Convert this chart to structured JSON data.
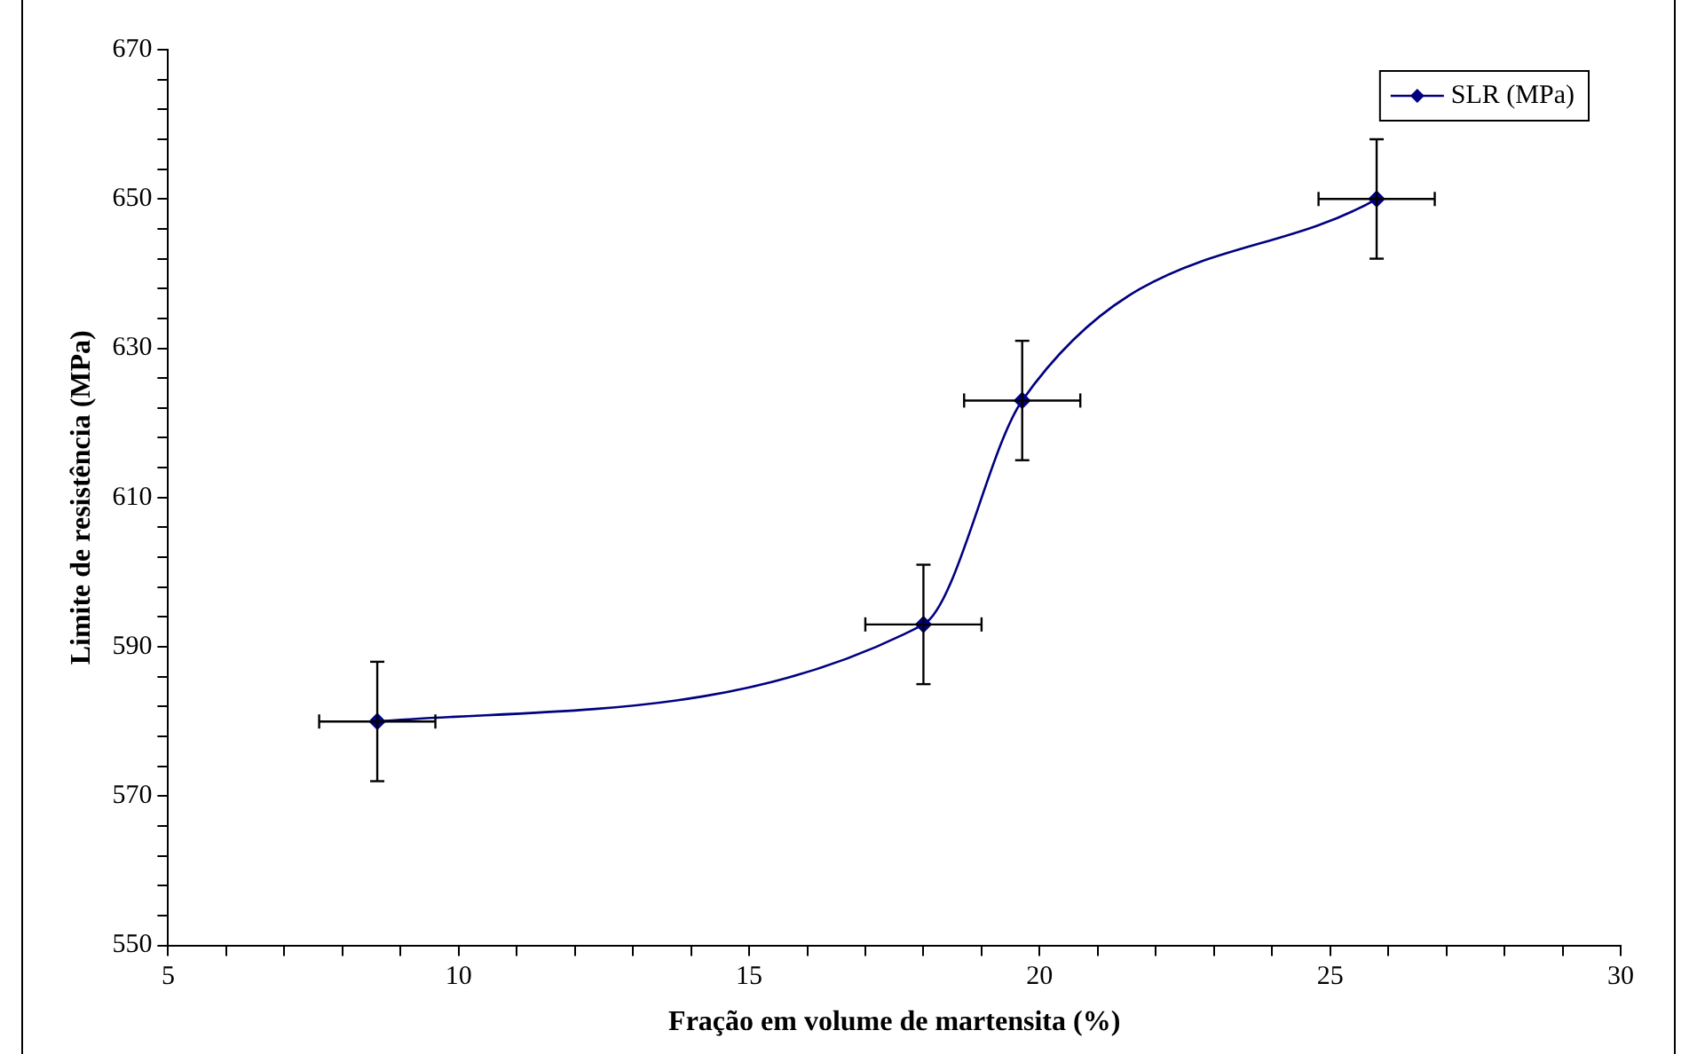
{
  "chart_data": {
    "type": "line",
    "xlabel": "Fração em volume de martensita (%)",
    "ylabel": "Limite de resistência (MPa)",
    "x": [
      8.6,
      18,
      19.7,
      25.8
    ],
    "series": [
      {
        "name": "SLR (MPa)",
        "color": "#000080",
        "values": [
          580,
          593,
          623,
          650
        ],
        "errors": [
          8,
          8,
          8,
          8
        ],
        "xerrors": [
          1,
          1,
          1,
          1
        ]
      }
    ],
    "xlim": [
      5,
      30
    ],
    "ylim": [
      550,
      670
    ],
    "xticks": [
      5,
      {
        "value": 6,
        "label": null
      },
      {
        "value": 7,
        "label": null
      },
      {
        "value": 8,
        "label": null
      },
      {
        "value": 9,
        "label": null
      },
      10,
      {
        "value": 11,
        "label": null
      },
      {
        "value": 12,
        "label": null
      },
      {
        "value": 13,
        "label": null
      },
      {
        "value": 14,
        "label": null
      },
      15,
      {
        "value": 16,
        "label": null
      },
      {
        "value": 17,
        "label": null
      },
      {
        "value": 18,
        "label": null
      },
      {
        "value": 19,
        "label": null
      },
      20,
      {
        "value": 21,
        "label": null
      },
      {
        "value": 22,
        "label": null
      },
      {
        "value": 23,
        "label": null
      },
      {
        "value": 24,
        "label": null
      },
      25,
      {
        "value": 26,
        "label": null
      },
      {
        "value": 27,
        "label": null
      },
      {
        "value": 28,
        "label": null
      },
      {
        "value": 29,
        "label": null
      },
      30
    ],
    "yticks": [
      550,
      {
        "value": 554,
        "label": null
      },
      {
        "value": 558,
        "label": null
      },
      {
        "value": 562,
        "label": null
      },
      {
        "value": 566,
        "label": null
      },
      570,
      {
        "value": 574,
        "label": null
      },
      {
        "value": 578,
        "label": null
      },
      {
        "value": 582,
        "label": null
      },
      {
        "value": 586,
        "label": null
      },
      590,
      {
        "value": 594,
        "label": null
      },
      {
        "value": 598,
        "label": null
      },
      {
        "value": 602,
        "label": null
      },
      {
        "value": 606,
        "label": null
      },
      610,
      {
        "value": 614,
        "label": null
      },
      {
        "value": 618,
        "label": null
      },
      {
        "value": 622,
        "label": null
      },
      {
        "value": 626,
        "label": null
      },
      630,
      {
        "value": 634,
        "label": null
      },
      {
        "value": 638,
        "label": null
      },
      {
        "value": 642,
        "label": null
      },
      {
        "value": 646,
        "label": null
      },
      650,
      {
        "value": 654,
        "label": null
      },
      {
        "value": 658,
        "label": null
      },
      {
        "value": 662,
        "label": null
      },
      {
        "value": 666,
        "label": null
      },
      670
    ],
    "grid": false,
    "legend": "top right",
    "marker": "diamond",
    "line_style": "solid"
  }
}
